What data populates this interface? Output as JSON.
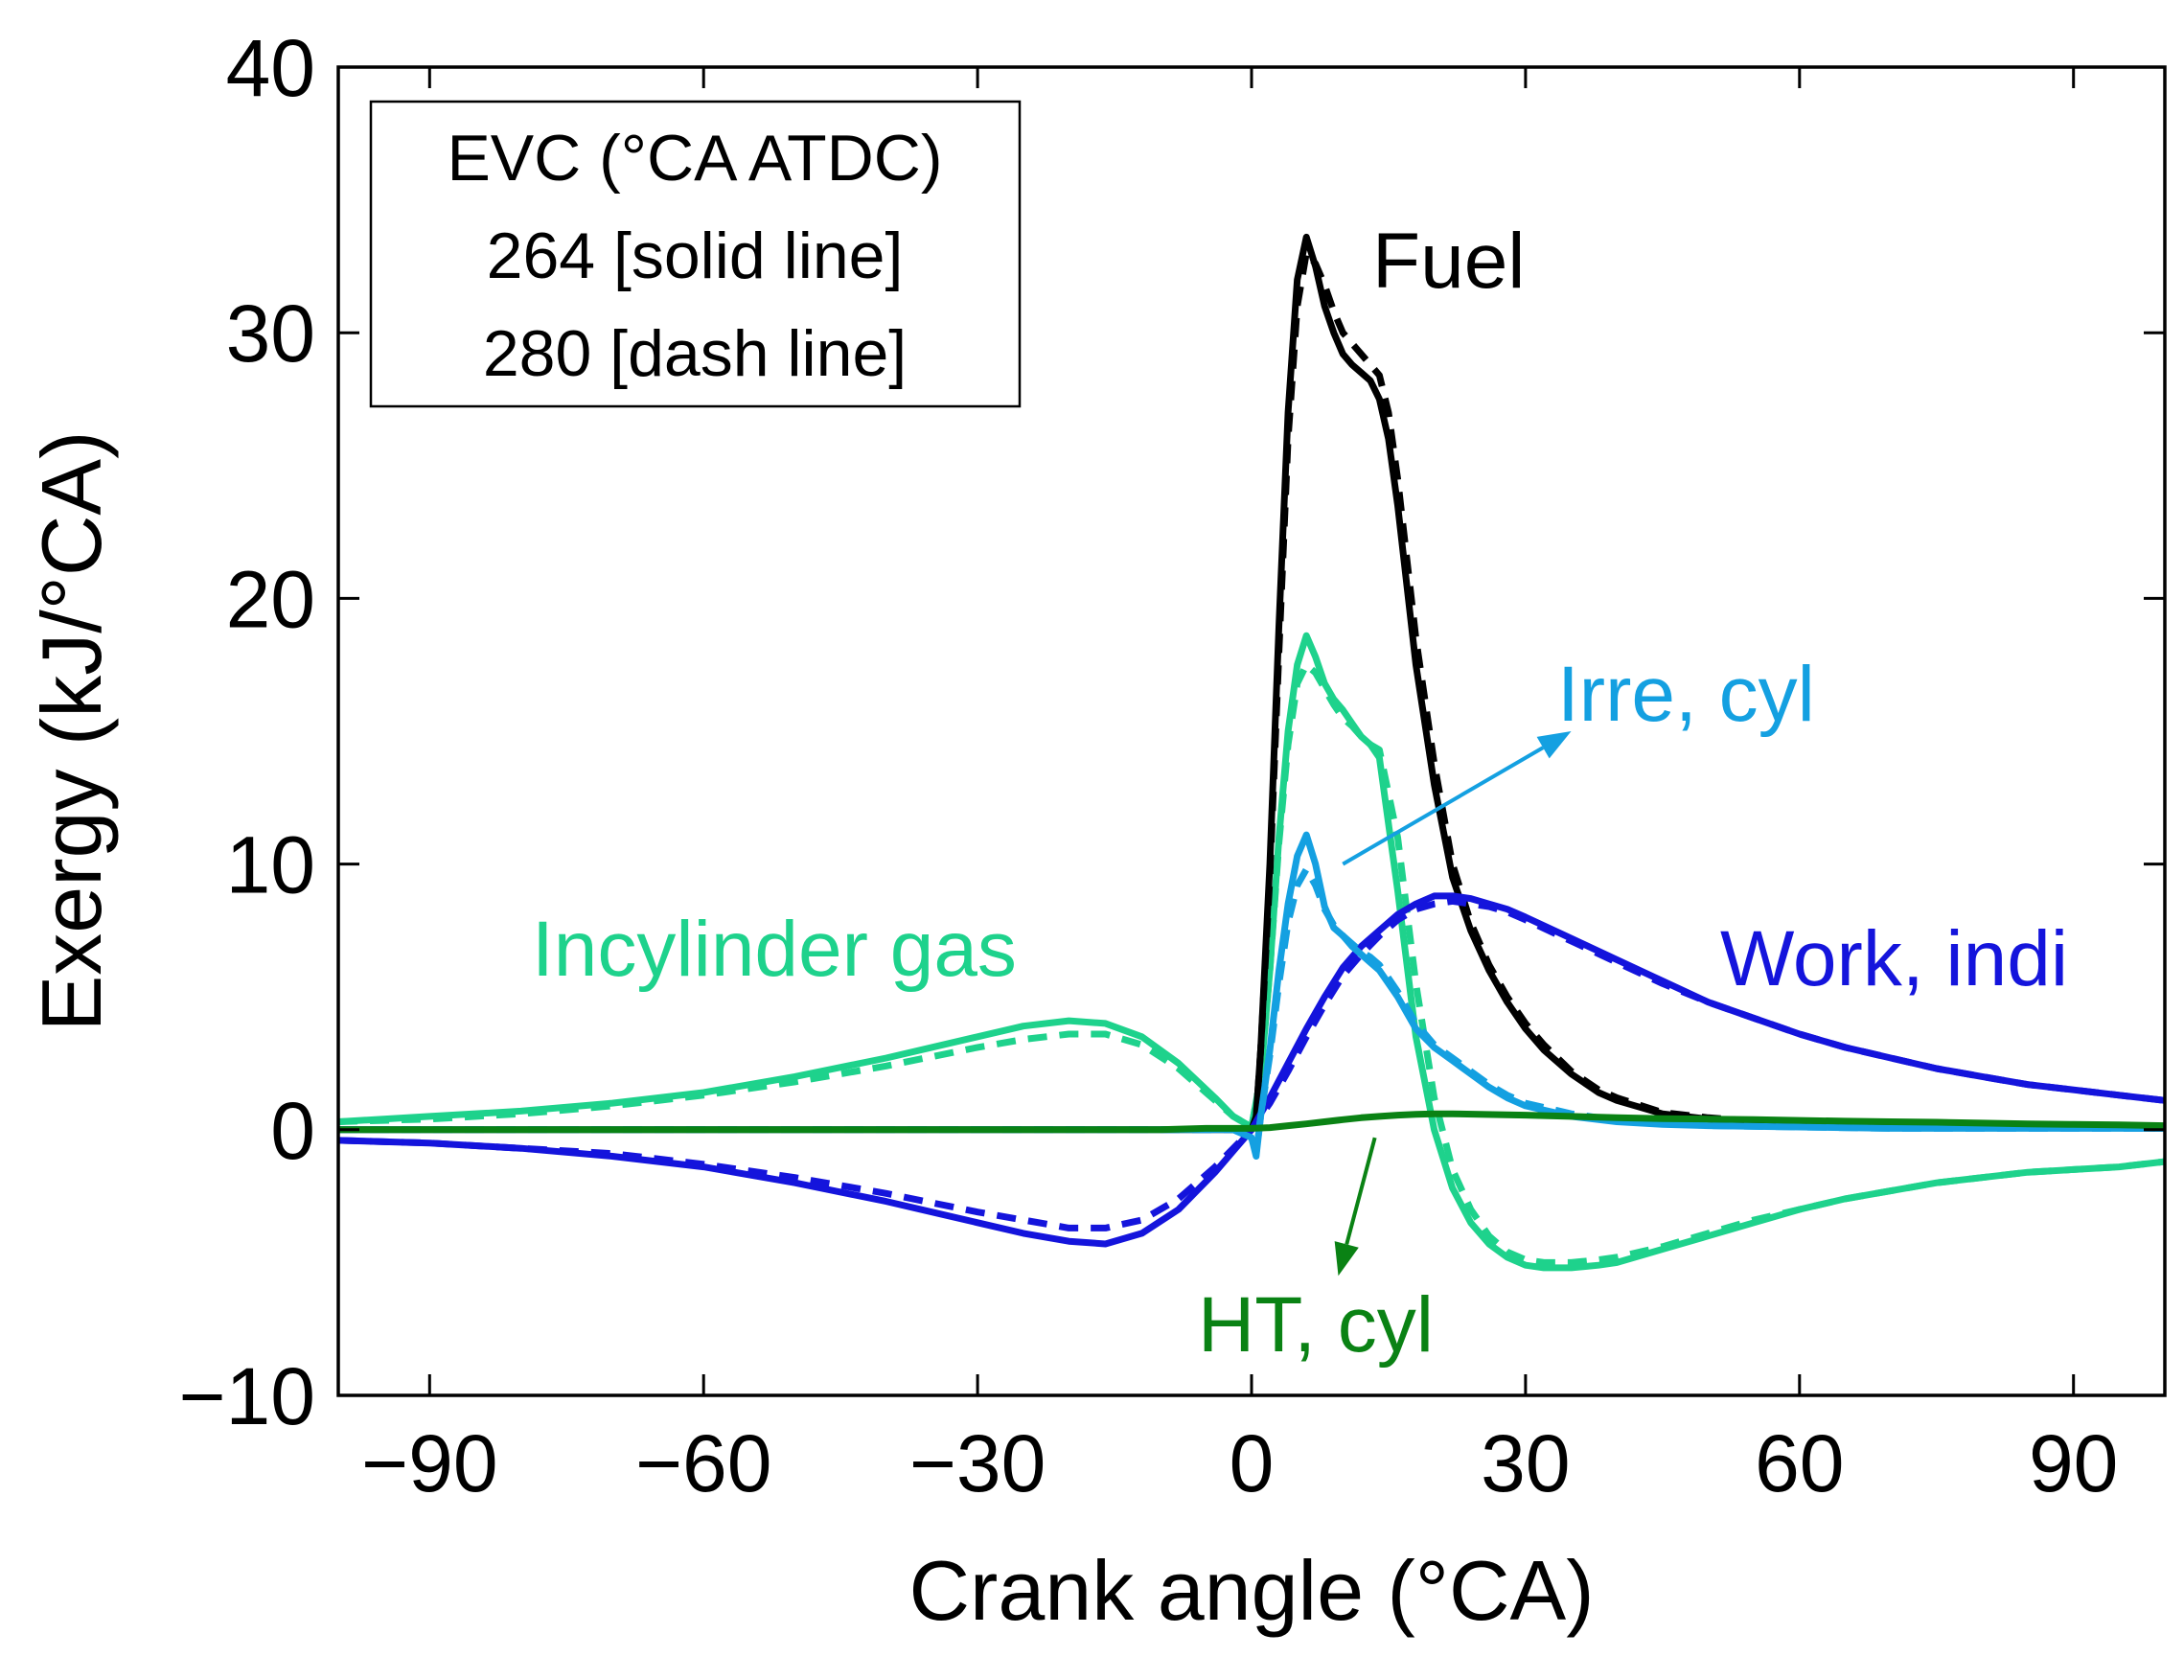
{
  "chart_data": {
    "type": "line",
    "title": "",
    "xlabel": "Crank angle (°CA)",
    "ylabel": "Exergy (kJ/°CA)",
    "xlim": [
      -100,
      100
    ],
    "ylim": [
      -10,
      40
    ],
    "xticks": [
      -90,
      -60,
      -30,
      0,
      30,
      60,
      90
    ],
    "xtick_labels": [
      "−90",
      "−60",
      "−30",
      "0",
      "30",
      "60",
      "90"
    ],
    "yticks": [
      -10,
      0,
      10,
      20,
      30,
      40
    ],
    "ytick_labels": [
      "−10",
      "0",
      "10",
      "20",
      "30",
      "40"
    ],
    "grid": false,
    "legend": {
      "position": "top-left",
      "lines": [
        "EVC (°CA ATDC)",
        "264 [solid line]",
        "280 [dash line]"
      ]
    },
    "colors": {
      "fuel": "#000000",
      "work": "#1414dc",
      "gas": "#1ed28c",
      "irre": "#14a0e1",
      "ht": "#0a8214"
    },
    "series": [
      {
        "name": "Incylinder gas",
        "variant": "264",
        "style": "solid",
        "color_key": "gas",
        "x": [
          -100,
          -90,
          -80,
          -70,
          -60,
          -50,
          -40,
          -30,
          -25,
          -20,
          -16,
          -12,
          -8,
          -4,
          -2,
          0,
          1,
          2,
          3,
          4,
          5,
          6,
          7,
          8,
          9,
          10,
          11,
          12,
          13,
          14,
          16,
          18,
          20,
          22,
          24,
          26,
          28,
          30,
          32,
          35,
          38,
          40,
          45,
          50,
          55,
          60,
          65,
          70,
          75,
          80,
          85,
          90,
          95,
          100
        ],
        "y": [
          0.3,
          0.5,
          0.7,
          1.0,
          1.4,
          2.0,
          2.7,
          3.5,
          3.9,
          4.1,
          4.0,
          3.5,
          2.5,
          1.2,
          0.5,
          0.1,
          2.0,
          6.0,
          11.0,
          15.0,
          17.5,
          18.6,
          17.8,
          16.8,
          16.2,
          15.8,
          15.3,
          14.8,
          14.5,
          14.0,
          9.0,
          3.5,
          0.0,
          -2.2,
          -3.5,
          -4.3,
          -4.8,
          -5.1,
          -5.2,
          -5.2,
          -5.1,
          -5.0,
          -4.5,
          -4.0,
          -3.5,
          -3.0,
          -2.6,
          -2.3,
          -2.0,
          -1.8,
          -1.6,
          -1.5,
          -1.4,
          -1.2
        ]
      },
      {
        "name": "Incylinder gas",
        "variant": "280",
        "style": "dash",
        "color_key": "gas",
        "x": [
          -100,
          -90,
          -80,
          -70,
          -60,
          -50,
          -40,
          -30,
          -25,
          -20,
          -16,
          -12,
          -8,
          -4,
          -2,
          0,
          1,
          2,
          3,
          4,
          5,
          6,
          7,
          8,
          9,
          10,
          11,
          12,
          13,
          14,
          16,
          18,
          20,
          22,
          24,
          26,
          28,
          30,
          32,
          35,
          38,
          40,
          45,
          50,
          55,
          60,
          65,
          70,
          75,
          80,
          85,
          90,
          95,
          100
        ],
        "y": [
          0.3,
          0.4,
          0.6,
          0.9,
          1.3,
          1.8,
          2.4,
          3.1,
          3.4,
          3.6,
          3.6,
          3.2,
          2.3,
          1.1,
          0.5,
          0.1,
          2.0,
          6.0,
          10.8,
          14.5,
          16.8,
          17.5,
          17.2,
          16.6,
          16.0,
          15.5,
          15.2,
          14.8,
          14.5,
          14.3,
          11.0,
          5.5,
          1.2,
          -1.5,
          -3.0,
          -4.0,
          -4.6,
          -4.9,
          -5.0,
          -5.0,
          -4.9,
          -4.8,
          -4.4,
          -3.9,
          -3.4,
          -3.0,
          -2.6,
          -2.3,
          -2.0,
          -1.8,
          -1.6,
          -1.5,
          -1.4,
          -1.2
        ]
      },
      {
        "name": "Fuel",
        "variant": "264",
        "style": "solid",
        "color_key": "fuel",
        "x": [
          -100,
          -50,
          0,
          0.5,
          1,
          2,
          3,
          4,
          5,
          6,
          7,
          8,
          9,
          10,
          11,
          12,
          13,
          14,
          15,
          16,
          17,
          18,
          20,
          22,
          24,
          26,
          28,
          30,
          32,
          35,
          38,
          40,
          45,
          50,
          55,
          60,
          70,
          80,
          90,
          100
        ],
        "y": [
          0,
          0,
          0,
          0.5,
          3.0,
          10.0,
          19.0,
          27.0,
          32.0,
          33.6,
          32.5,
          31.0,
          30.0,
          29.2,
          28.8,
          28.5,
          28.2,
          27.5,
          26.0,
          23.5,
          20.5,
          17.5,
          13.0,
          9.5,
          7.5,
          6.0,
          4.8,
          3.8,
          3.0,
          2.1,
          1.4,
          1.1,
          0.6,
          0.4,
          0.3,
          0.25,
          0.2,
          0.15,
          0.1,
          0.05
        ]
      },
      {
        "name": "Fuel",
        "variant": "280",
        "style": "dash",
        "color_key": "fuel",
        "x": [
          -100,
          -50,
          0,
          0.5,
          1,
          2,
          3,
          4,
          5,
          6,
          7,
          8,
          9,
          10,
          11,
          12,
          13,
          14,
          15,
          16,
          17,
          18,
          20,
          22,
          24,
          26,
          28,
          30,
          32,
          35,
          38,
          40,
          45,
          50,
          55,
          60,
          70,
          80,
          90,
          100
        ],
        "y": [
          0,
          0,
          0,
          0.5,
          3.0,
          9.5,
          18.0,
          26.0,
          31.0,
          33.0,
          32.6,
          31.8,
          30.8,
          30.0,
          29.6,
          29.2,
          28.8,
          28.4,
          27.0,
          24.5,
          21.5,
          18.5,
          13.8,
          10.0,
          7.8,
          6.2,
          5.0,
          4.0,
          3.2,
          2.2,
          1.5,
          1.2,
          0.65,
          0.45,
          0.32,
          0.26,
          0.2,
          0.15,
          0.1,
          0.05
        ]
      },
      {
        "name": "Work, indi",
        "variant": "264",
        "style": "solid",
        "color_key": "work",
        "x": [
          -100,
          -90,
          -80,
          -70,
          -60,
          -50,
          -40,
          -30,
          -25,
          -20,
          -16,
          -12,
          -8,
          -4,
          -2,
          0,
          2,
          4,
          6,
          8,
          10,
          12,
          14,
          16,
          18,
          20,
          22,
          24,
          26,
          28,
          30,
          35,
          40,
          45,
          50,
          55,
          60,
          65,
          70,
          75,
          80,
          85,
          90,
          95,
          100
        ],
        "y": [
          -0.4,
          -0.5,
          -0.7,
          -1.0,
          -1.4,
          -2.0,
          -2.7,
          -3.5,
          -3.9,
          -4.2,
          -4.3,
          -3.9,
          -3.0,
          -1.6,
          -0.8,
          0.0,
          1.2,
          2.5,
          3.8,
          5.0,
          6.1,
          6.9,
          7.5,
          8.1,
          8.5,
          8.8,
          8.8,
          8.7,
          8.5,
          8.3,
          8.0,
          7.2,
          6.4,
          5.6,
          4.8,
          4.2,
          3.6,
          3.1,
          2.7,
          2.3,
          2.0,
          1.7,
          1.5,
          1.3,
          1.1
        ]
      },
      {
        "name": "Work, indi",
        "variant": "280",
        "style": "dash",
        "color_key": "work",
        "x": [
          -100,
          -90,
          -80,
          -70,
          -60,
          -50,
          -40,
          -30,
          -25,
          -20,
          -16,
          -12,
          -8,
          -4,
          -2,
          0,
          2,
          4,
          6,
          8,
          10,
          12,
          14,
          16,
          18,
          20,
          22,
          24,
          26,
          28,
          30,
          35,
          40,
          45,
          50,
          55,
          60,
          65,
          70,
          75,
          80,
          85,
          90,
          95,
          100
        ],
        "y": [
          -0.4,
          -0.5,
          -0.7,
          -0.9,
          -1.3,
          -1.8,
          -2.4,
          -3.1,
          -3.4,
          -3.7,
          -3.7,
          -3.4,
          -2.6,
          -1.4,
          -0.7,
          0.0,
          1.0,
          2.2,
          3.5,
          4.7,
          5.8,
          6.6,
          7.3,
          7.9,
          8.3,
          8.5,
          8.6,
          8.5,
          8.4,
          8.2,
          7.9,
          7.1,
          6.3,
          5.5,
          4.8,
          4.2,
          3.6,
          3.1,
          2.7,
          2.3,
          2.0,
          1.7,
          1.5,
          1.3,
          1.1
        ]
      },
      {
        "name": "Irre, cyl",
        "variant": "264",
        "style": "solid",
        "color_key": "irre",
        "x": [
          -100,
          -50,
          -10,
          -2,
          0,
          0.5,
          1,
          2,
          3,
          4,
          5,
          6,
          7,
          8,
          9,
          10,
          11,
          12,
          13,
          14,
          16,
          18,
          20,
          22,
          24,
          26,
          28,
          30,
          35,
          40,
          45,
          50,
          60,
          70,
          80,
          90,
          100
        ],
        "y": [
          0,
          0,
          0,
          0,
          -0.3,
          -1.0,
          0.5,
          3.0,
          6.0,
          8.5,
          10.3,
          11.1,
          10.0,
          8.4,
          7.6,
          7.3,
          6.9,
          6.6,
          6.3,
          6.0,
          5.0,
          3.8,
          3.1,
          2.6,
          2.1,
          1.6,
          1.2,
          0.9,
          0.5,
          0.3,
          0.2,
          0.15,
          0.1,
          0.05,
          0.05,
          0.05,
          0.05
        ]
      },
      {
        "name": "Irre, cyl",
        "variant": "280",
        "style": "dash",
        "color_key": "irre",
        "x": [
          -100,
          -50,
          -10,
          -2,
          0,
          0.5,
          1,
          2,
          3,
          4,
          5,
          6,
          7,
          8,
          9,
          10,
          11,
          12,
          13,
          14,
          16,
          18,
          20,
          22,
          24,
          26,
          28,
          30,
          35,
          40,
          45,
          50,
          60,
          70,
          80,
          90,
          100
        ],
        "y": [
          0,
          0,
          0,
          0,
          -0.3,
          -0.9,
          0.5,
          2.8,
          5.5,
          7.8,
          9.2,
          9.8,
          9.2,
          8.3,
          7.7,
          7.3,
          7.0,
          6.7,
          6.5,
          6.2,
          5.2,
          4.0,
          3.2,
          2.7,
          2.2,
          1.7,
          1.3,
          1.0,
          0.6,
          0.35,
          0.25,
          0.15,
          0.1,
          0.05,
          0.05,
          0.05,
          0.05
        ]
      },
      {
        "name": "HT, cyl",
        "variant": "264",
        "style": "solid",
        "color_key": "ht",
        "x": [
          -100,
          -50,
          -20,
          -10,
          -5,
          -2,
          0,
          2,
          4,
          6,
          8,
          10,
          12,
          14,
          16,
          18,
          20,
          22,
          25,
          30,
          35,
          40,
          45,
          50,
          55,
          60,
          65,
          70,
          75,
          80,
          85,
          90,
          95,
          100
        ],
        "y": [
          0,
          0,
          0,
          0,
          0.05,
          0.05,
          0.05,
          0.08,
          0.15,
          0.22,
          0.3,
          0.38,
          0.45,
          0.5,
          0.55,
          0.58,
          0.6,
          0.6,
          0.58,
          0.55,
          0.5,
          0.45,
          0.42,
          0.4,
          0.38,
          0.35,
          0.32,
          0.3,
          0.28,
          0.25,
          0.22,
          0.2,
          0.18,
          0.15
        ]
      }
    ],
    "annotations": [
      {
        "text": "Fuel",
        "color_key": "fuel"
      },
      {
        "text": "Irre, cyl",
        "color_key": "irre"
      },
      {
        "text": "Incylinder gas",
        "color_key": "gas"
      },
      {
        "text": "Work, indi",
        "color_key": "work"
      },
      {
        "text": "HT, cyl",
        "color_key": "ht"
      }
    ],
    "arrows": [
      {
        "name": "irre-arrow",
        "color_key": "irre",
        "from": [
          10,
          10
        ],
        "to": [
          35,
          15
        ]
      },
      {
        "name": "ht-arrow",
        "color_key": "ht",
        "from": [
          13.5,
          -0.3
        ],
        "to": [
          9.5,
          -5.5
        ]
      }
    ]
  }
}
